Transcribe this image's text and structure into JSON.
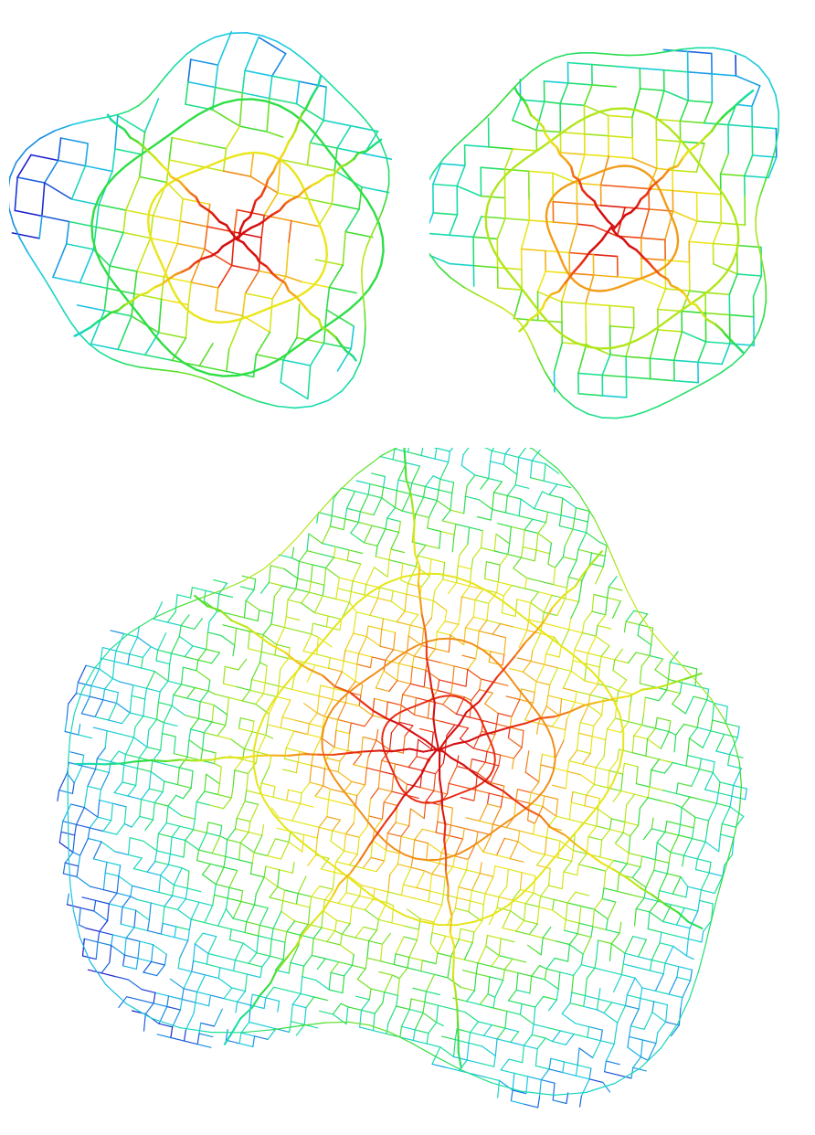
{
  "figure": {
    "panels": [
      {
        "id": "top-left",
        "description_visible_text": ""
      },
      {
        "id": "top-right",
        "description_visible_text": ""
      },
      {
        "id": "bottom",
        "description_visible_text": ""
      }
    ],
    "colormap": [
      "#1a1acc",
      "#1a6fe0",
      "#19c8e6",
      "#19e0a0",
      "#33dd33",
      "#b8e619",
      "#f0e619",
      "#f2a019",
      "#ee3a14",
      "#d40f0f"
    ]
  }
}
